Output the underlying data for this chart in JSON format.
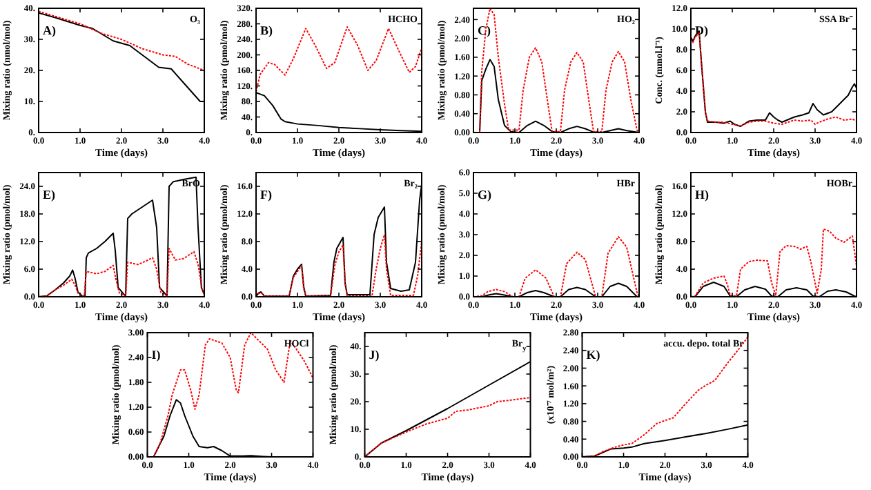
{
  "chart_data": [
    {
      "type": "line",
      "title": "A)",
      "subtitle": "O₃",
      "xlabel": "Time (days)",
      "ylabel": "Mixing ratio (nmol/mol)",
      "grid": false,
      "xlim": [
        0,
        4
      ],
      "xticks": [
        {
          "value": 0,
          "label": "0.0"
        },
        {
          "value": 1,
          "label": "1.0"
        },
        {
          "value": 2,
          "label": "2.0"
        },
        {
          "value": 3,
          "label": "3.0"
        },
        {
          "value": 4,
          "label": "4.0"
        }
      ],
      "ylim": [
        0,
        40
      ],
      "yticks": [
        {
          "value": 0,
          "label": "0."
        },
        {
          "value": 10,
          "label": "10."
        },
        {
          "value": 20,
          "label": "20."
        },
        {
          "value": 30,
          "label": "30."
        },
        {
          "value": 40,
          "label": "40."
        }
      ],
      "series": [
        {
          "color": "#000000",
          "line_style": "solid",
          "x": [
            0,
            0.4,
            1.0,
            1.3,
            1.8,
            2.2,
            2.5,
            2.9,
            3.2,
            3.5,
            3.9,
            4.0
          ],
          "values": [
            38.5,
            37,
            34.5,
            33.5,
            29.5,
            28,
            25,
            21,
            20.5,
            16,
            10,
            10
          ]
        },
        {
          "color": "#ff0000",
          "line_style": "dotted",
          "x": [
            0,
            0.5,
            1.0,
            1.5,
            2.0,
            2.5,
            3.0,
            3.3,
            3.6,
            4.0
          ],
          "values": [
            39,
            37,
            35,
            32,
            30,
            27,
            25,
            24.5,
            22,
            20
          ]
        }
      ]
    },
    {
      "type": "line",
      "title": "B)",
      "subtitle": "HCHO",
      "xlabel": "Time (days)",
      "ylabel": "Mixing ratio (pmol/mol)",
      "grid": false,
      "xlim": [
        0,
        4
      ],
      "xticks": [
        {
          "value": 0,
          "label": "0.0"
        },
        {
          "value": 1,
          "label": "1.0"
        },
        {
          "value": 2,
          "label": "2.0"
        },
        {
          "value": 3,
          "label": "3.0"
        },
        {
          "value": 4,
          "label": "4.0"
        }
      ],
      "ylim": [
        0,
        320
      ],
      "yticks": [
        {
          "value": 0,
          "label": "0."
        },
        {
          "value": 40,
          "label": "40."
        },
        {
          "value": 80,
          "label": "80."
        },
        {
          "value": 120,
          "label": "120."
        },
        {
          "value": 160,
          "label": "160."
        },
        {
          "value": 200,
          "label": "200."
        },
        {
          "value": 240,
          "label": "240."
        },
        {
          "value": 280,
          "label": "280."
        },
        {
          "value": 320,
          "label": "320."
        }
      ],
      "series": [
        {
          "color": "#000000",
          "line_style": "solid",
          "x": [
            0,
            0.2,
            0.4,
            0.6,
            0.7,
            1,
            1.5,
            2,
            2.5,
            3,
            3.5,
            4
          ],
          "values": [
            103,
            95,
            70,
            35,
            28,
            22,
            18,
            13,
            10,
            7,
            5,
            3
          ]
        },
        {
          "color": "#ff0000",
          "line_style": "dotted",
          "x": [
            0,
            0.1,
            0.3,
            0.45,
            0.7,
            0.9,
            1.2,
            1.45,
            1.7,
            1.9,
            2.2,
            2.45,
            2.7,
            2.9,
            3.2,
            3.45,
            3.7,
            3.85,
            4.0
          ],
          "values": [
            105,
            150,
            180,
            175,
            148,
            190,
            268,
            220,
            165,
            180,
            272,
            225,
            160,
            185,
            268,
            210,
            155,
            170,
            218
          ]
        }
      ]
    },
    {
      "type": "line",
      "title": "C)",
      "subtitle": "HO₂",
      "xlabel": "Time (days)",
      "ylabel": "Mixing ratio (pmol/mol)",
      "grid": false,
      "xlim": [
        0,
        4
      ],
      "xticks": [
        {
          "value": 0,
          "label": "0.0"
        },
        {
          "value": 1,
          "label": "1.0"
        },
        {
          "value": 2,
          "label": "2.0"
        },
        {
          "value": 3,
          "label": "3.0"
        },
        {
          "value": 4,
          "label": "4.0"
        }
      ],
      "ylim": [
        0,
        2.64
      ],
      "yticks": [
        {
          "value": 0,
          "label": "0.00"
        },
        {
          "value": 0.4,
          "label": "0.40"
        },
        {
          "value": 0.8,
          "label": "0.80"
        },
        {
          "value": 1.2,
          "label": "1.20"
        },
        {
          "value": 1.6,
          "label": "1.60"
        },
        {
          "value": 2.0,
          "label": "2.00"
        },
        {
          "value": 2.4,
          "label": "2.40"
        }
      ],
      "series": [
        {
          "color": "#000000",
          "line_style": "solid",
          "x": [
            0,
            0.15,
            0.2,
            0.3,
            0.4,
            0.5,
            0.6,
            0.75,
            0.9,
            1.1,
            1.3,
            1.5,
            1.7,
            1.9,
            2.1,
            2.3,
            2.5,
            2.7,
            2.9,
            3.1,
            3.3,
            3.5,
            3.7,
            4.0
          ],
          "values": [
            0,
            0,
            1.1,
            1.35,
            1.55,
            1.4,
            0.7,
            0.15,
            0.02,
            0,
            0.15,
            0.24,
            0.15,
            0.02,
            0,
            0.08,
            0.13,
            0.08,
            0.01,
            0,
            0.04,
            0.08,
            0.04,
            0
          ]
        },
        {
          "color": "#ff0000",
          "line_style": "dotted",
          "x": [
            0,
            0.15,
            0.2,
            0.3,
            0.4,
            0.5,
            0.6,
            0.75,
            0.85,
            1.1,
            1.2,
            1.35,
            1.5,
            1.65,
            1.8,
            1.9,
            2.1,
            2.2,
            2.35,
            2.5,
            2.65,
            2.8,
            2.9,
            3.1,
            3.2,
            3.35,
            3.5,
            3.65,
            3.8,
            3.95,
            4.0
          ],
          "values": [
            0,
            0,
            1.3,
            2.2,
            2.64,
            2.5,
            1.6,
            0.6,
            0.05,
            0.05,
            0.9,
            1.6,
            1.8,
            1.5,
            0.6,
            0.02,
            0.02,
            0.9,
            1.5,
            1.7,
            1.5,
            0.6,
            0.02,
            0.02,
            0.9,
            1.5,
            1.72,
            1.5,
            0.7,
            0.05,
            0
          ]
        }
      ]
    },
    {
      "type": "line",
      "title": "D)",
      "subtitle": "SSA Br⁻",
      "xlabel": "Time (days)",
      "ylabel": "Conc. (mmol.l⁻¹)",
      "grid": false,
      "xlim": [
        0,
        4
      ],
      "xticks": [
        {
          "value": 0,
          "label": "0.0"
        },
        {
          "value": 1,
          "label": "1.0"
        },
        {
          "value": 2,
          "label": "2.0"
        },
        {
          "value": 3,
          "label": "3.0"
        },
        {
          "value": 4,
          "label": "4.0"
        }
      ],
      "ylim": [
        0,
        12
      ],
      "yticks": [
        {
          "value": 0,
          "label": "0.0"
        },
        {
          "value": 2,
          "label": "2.0"
        },
        {
          "value": 4,
          "label": "4.0"
        },
        {
          "value": 6,
          "label": "6.0"
        },
        {
          "value": 8,
          "label": "8.0"
        },
        {
          "value": 10,
          "label": "10.0"
        },
        {
          "value": 12,
          "label": "12.0"
        }
      ],
      "series": [
        {
          "color": "#000000",
          "line_style": "solid",
          "x": [
            0,
            0.05,
            0.1,
            0.2,
            0.25,
            0.35,
            0.4,
            0.6,
            0.8,
            0.95,
            1.05,
            1.2,
            1.4,
            1.6,
            1.8,
            1.9,
            2.0,
            2.1,
            2.2,
            2.5,
            2.7,
            2.85,
            2.95,
            3.05,
            3.2,
            3.4,
            3.6,
            3.8,
            3.9,
            3.95,
            4.0
          ],
          "values": [
            9.2,
            8.8,
            9.3,
            9.8,
            7,
            2,
            1,
            1,
            0.9,
            1.1,
            0.8,
            0.6,
            1.1,
            1.2,
            1.2,
            1.9,
            1.5,
            1.2,
            1.0,
            1.5,
            1.7,
            1.9,
            2.8,
            2.2,
            1.7,
            2.0,
            2.8,
            3.6,
            4.4,
            4.7,
            4.3
          ]
        },
        {
          "color": "#ff0000",
          "line_style": "dotted",
          "x": [
            0,
            0.05,
            0.1,
            0.2,
            0.25,
            0.35,
            0.4,
            0.6,
            0.8,
            1.0,
            1.2,
            1.4,
            1.6,
            1.8,
            2.0,
            2.2,
            2.5,
            2.7,
            2.9,
            3.0,
            3.1,
            3.3,
            3.5,
            3.7,
            3.9,
            4.0
          ],
          "values": [
            9.0,
            8.7,
            9.2,
            9.6,
            7,
            2,
            1.1,
            1.0,
            1.0,
            0.8,
            0.6,
            1.0,
            1.1,
            1.1,
            0.9,
            0.8,
            1.2,
            1.1,
            1.2,
            0.8,
            1.0,
            1.3,
            1.5,
            1.2,
            1.3,
            1.1
          ]
        }
      ]
    },
    {
      "type": "line",
      "title": "E)",
      "subtitle": "BrO",
      "xlabel": "Time (days)",
      "ylabel": "Mixing ratio (pmol/mol)",
      "grid": false,
      "xlim": [
        0,
        4
      ],
      "xticks": [
        {
          "value": 0,
          "label": "0.0"
        },
        {
          "value": 1,
          "label": "1.0"
        },
        {
          "value": 2,
          "label": "2.0"
        },
        {
          "value": 3,
          "label": "3.0"
        },
        {
          "value": 4,
          "label": "4.0"
        }
      ],
      "ylim": [
        0,
        27
      ],
      "yticks": [
        {
          "value": 0,
          "label": "0.0"
        },
        {
          "value": 6,
          "label": "6.0"
        },
        {
          "value": 12,
          "label": "12.0"
        },
        {
          "value": 18,
          "label": "18.0"
        },
        {
          "value": 24,
          "label": "24.0"
        }
      ],
      "series": [
        {
          "color": "#000000",
          "line_style": "solid",
          "x": [
            0,
            0.2,
            0.4,
            0.6,
            0.75,
            0.82,
            0.88,
            0.95,
            1.05,
            1.12,
            1.15,
            1.2,
            1.4,
            1.6,
            1.8,
            1.85,
            1.92,
            2.1,
            2.15,
            2.25,
            2.5,
            2.75,
            2.85,
            2.92,
            3.1,
            3.15,
            3.25,
            3.5,
            3.8,
            3.85,
            3.93,
            4.0
          ],
          "values": [
            0,
            0.2,
            1.5,
            3,
            4.5,
            5.8,
            4,
            1,
            0.2,
            0.1,
            8.5,
            9.5,
            10.5,
            12,
            13.8,
            10,
            2,
            0.1,
            17,
            18,
            19.5,
            21,
            15,
            2,
            0.2,
            24,
            25,
            25.5,
            26,
            15,
            2,
            0.5
          ]
        },
        {
          "color": "#ff0000",
          "line_style": "dotted",
          "x": [
            0,
            0.2,
            0.4,
            0.6,
            0.8,
            0.88,
            0.95,
            1.1,
            1.15,
            1.4,
            1.6,
            1.8,
            1.86,
            1.95,
            2.1,
            2.15,
            2.4,
            2.6,
            2.75,
            2.85,
            2.95,
            3.1,
            3.15,
            3.3,
            3.5,
            3.75,
            3.85,
            3.95,
            4.0
          ],
          "values": [
            0,
            0.2,
            1.5,
            2.5,
            3.8,
            2.5,
            0.8,
            0.1,
            5.5,
            5.0,
            5.5,
            6.8,
            4,
            0.8,
            0.1,
            7.5,
            7.0,
            7.8,
            8.5,
            6,
            1,
            0.2,
            10.5,
            8,
            8.3,
            9.8,
            7,
            1.5,
            0.5
          ]
        }
      ]
    },
    {
      "type": "line",
      "title": "F)",
      "subtitle": "Br₂",
      "xlabel": "Time (days)",
      "ylabel": "Mixing ratio (pmol/mol)",
      "grid": false,
      "xlim": [
        0,
        4
      ],
      "xticks": [
        {
          "value": 0,
          "label": "0.0"
        },
        {
          "value": 1,
          "label": "1.0"
        },
        {
          "value": 2,
          "label": "2.0"
        },
        {
          "value": 3,
          "label": "3.0"
        },
        {
          "value": 4,
          "label": "4.0"
        }
      ],
      "ylim": [
        0,
        18
      ],
      "yticks": [
        {
          "value": 0,
          "label": "0.0"
        },
        {
          "value": 4,
          "label": "4.0"
        },
        {
          "value": 8,
          "label": "8.0"
        },
        {
          "value": 12,
          "label": "12.0"
        },
        {
          "value": 16,
          "label": "16.0"
        }
      ],
      "series": [
        {
          "color": "#000000",
          "line_style": "solid",
          "x": [
            0,
            0.05,
            0.12,
            0.2,
            0.8,
            0.9,
            1.0,
            1.1,
            1.15,
            1.2,
            1.8,
            1.88,
            1.95,
            2.1,
            2.15,
            2.2,
            2.75,
            2.85,
            2.95,
            3.1,
            3.15,
            3.25,
            3.5,
            3.7,
            3.85,
            3.95,
            4.0
          ],
          "values": [
            0,
            0.5,
            0.7,
            0.1,
            0.1,
            3,
            4,
            4.7,
            1.5,
            0.1,
            0.2,
            5,
            7,
            8.6,
            2,
            0.3,
            0.3,
            9,
            11.5,
            13,
            5,
            1.2,
            0.8,
            1,
            5,
            14,
            16.3
          ]
        },
        {
          "color": "#ff0000",
          "line_style": "dotted",
          "x": [
            0,
            0.05,
            0.12,
            0.2,
            0.8,
            0.9,
            1.1,
            1.15,
            1.2,
            1.8,
            1.9,
            2.0,
            2.1,
            2.15,
            2.2,
            2.8,
            2.9,
            3.0,
            3.1,
            3.15,
            3.25,
            3.8,
            3.9,
            4.0
          ],
          "values": [
            0,
            0.4,
            0.6,
            0.1,
            0.1,
            2.8,
            4.5,
            1.2,
            0.1,
            0.1,
            4.5,
            6.5,
            7.5,
            2,
            0.1,
            0.1,
            4,
            7,
            9,
            4,
            0.2,
            0.2,
            3,
            8
          ]
        }
      ]
    },
    {
      "type": "line",
      "title": "G)",
      "subtitle": "HBr",
      "xlabel": "Time (days)",
      "ylabel": "Mixing ratio (pmol/mol)",
      "grid": false,
      "xlim": [
        0,
        4
      ],
      "xticks": [
        {
          "value": 0,
          "label": "0.0"
        },
        {
          "value": 1,
          "label": "1.0"
        },
        {
          "value": 2,
          "label": "2.0"
        },
        {
          "value": 3,
          "label": "3.0"
        },
        {
          "value": 4,
          "label": "4.0"
        }
      ],
      "ylim": [
        0,
        6
      ],
      "yticks": [
        {
          "value": 0,
          "label": "0.0"
        },
        {
          "value": 1,
          "label": "1.0"
        },
        {
          "value": 2,
          "label": "2.0"
        },
        {
          "value": 3,
          "label": "3.0"
        },
        {
          "value": 4,
          "label": "4.0"
        },
        {
          "value": 5,
          "label": "5.0"
        },
        {
          "value": 6,
          "label": "6.0"
        }
      ],
      "series": [
        {
          "color": "#000000",
          "line_style": "solid",
          "x": [
            0,
            0.2,
            0.4,
            0.55,
            0.7,
            0.95,
            1.1,
            1.3,
            1.5,
            1.7,
            1.95,
            2.1,
            2.3,
            2.5,
            2.7,
            2.95,
            3.1,
            3.3,
            3.5,
            3.7,
            3.95,
            4.0
          ],
          "values": [
            0,
            0,
            0.1,
            0.15,
            0.1,
            0,
            0,
            0.2,
            0.3,
            0.2,
            0,
            0,
            0.35,
            0.45,
            0.35,
            0,
            0,
            0.5,
            0.65,
            0.5,
            0,
            0
          ]
        },
        {
          "color": "#ff0000",
          "line_style": "dotted",
          "x": [
            0,
            0.2,
            0.35,
            0.55,
            0.75,
            0.95,
            1.1,
            1.25,
            1.5,
            1.75,
            1.95,
            2.1,
            2.25,
            2.5,
            2.7,
            2.95,
            3.1,
            3.25,
            3.5,
            3.7,
            3.95,
            4.0
          ],
          "values": [
            0,
            0.05,
            0.25,
            0.35,
            0.25,
            0,
            0,
            0.9,
            1.3,
            0.9,
            0,
            0,
            1.6,
            2.15,
            1.8,
            0,
            0,
            2.1,
            2.9,
            2.4,
            0.2,
            0
          ]
        }
      ]
    },
    {
      "type": "line",
      "title": "H)",
      "subtitle": "HOBr",
      "xlabel": "Time (days)",
      "ylabel": "Mixing ratio (pmol/mol)",
      "grid": false,
      "xlim": [
        0,
        4
      ],
      "xticks": [
        {
          "value": 0,
          "label": "0.0"
        },
        {
          "value": 1,
          "label": "1.0"
        },
        {
          "value": 2,
          "label": "2.0"
        },
        {
          "value": 3,
          "label": "3.0"
        },
        {
          "value": 4,
          "label": "4.0"
        }
      ],
      "ylim": [
        0,
        18
      ],
      "yticks": [
        {
          "value": 0,
          "label": "0.0"
        },
        {
          "value": 4,
          "label": "4.0"
        },
        {
          "value": 8,
          "label": "8.0"
        },
        {
          "value": 12,
          "label": "12.0"
        },
        {
          "value": 16,
          "label": "16.0"
        }
      ],
      "series": [
        {
          "color": "#000000",
          "line_style": "solid",
          "x": [
            0,
            0.1,
            0.3,
            0.55,
            0.8,
            0.95,
            1.1,
            1.3,
            1.55,
            1.8,
            1.95,
            2.1,
            2.3,
            2.55,
            2.8,
            2.95,
            3.1,
            3.3,
            3.5,
            3.75,
            3.95,
            4.0
          ],
          "values": [
            0,
            0,
            1.5,
            2.1,
            1.5,
            0.1,
            0,
            1,
            1.5,
            1.1,
            0.1,
            0,
            1,
            1.3,
            1,
            0.1,
            0,
            0.8,
            1.0,
            0.7,
            0.1,
            0
          ]
        },
        {
          "color": "#ff0000",
          "line_style": "dotted",
          "x": [
            0,
            0.1,
            0.3,
            0.55,
            0.8,
            0.88,
            0.95,
            1.1,
            1.2,
            1.4,
            1.6,
            1.85,
            1.95,
            2.05,
            2.15,
            2.3,
            2.5,
            2.65,
            2.8,
            2.9,
            3.05,
            3.15,
            3.2,
            3.35,
            3.5,
            3.7,
            3.9,
            4.0
          ],
          "values": [
            0,
            0.1,
            2,
            2.7,
            3.0,
            1.8,
            0.2,
            0.1,
            4,
            5.1,
            5.3,
            5.2,
            2,
            0.2,
            6.5,
            7.4,
            7.3,
            6.9,
            7.3,
            5,
            0.5,
            4,
            9.8,
            9.5,
            8.5,
            7.9,
            8.8,
            4.5
          ]
        }
      ]
    },
    {
      "type": "line",
      "title": "I)",
      "subtitle": "HOCl",
      "xlabel": "Time (days)",
      "ylabel": "Mixing ratio (pmol/mol)",
      "grid": false,
      "xlim": [
        0,
        4
      ],
      "xticks": [
        {
          "value": 0,
          "label": "0.0"
        },
        {
          "value": 1,
          "label": "1.0"
        },
        {
          "value": 2,
          "label": "2.0"
        },
        {
          "value": 3,
          "label": "3.0"
        },
        {
          "value": 4,
          "label": "4.0"
        }
      ],
      "ylim": [
        0,
        3
      ],
      "yticks": [
        {
          "value": 0,
          "label": "0.00"
        },
        {
          "value": 0.6,
          "label": "0.60"
        },
        {
          "value": 1.2,
          "label": "1.20"
        },
        {
          "value": 1.8,
          "label": "1.80"
        },
        {
          "value": 2.4,
          "label": "2.40"
        },
        {
          "value": 3.0,
          "label": "3.00"
        }
      ],
      "series": [
        {
          "color": "#000000",
          "line_style": "solid",
          "x": [
            0,
            0.15,
            0.3,
            0.4,
            0.55,
            0.7,
            0.8,
            0.9,
            1.1,
            1.25,
            1.45,
            1.6,
            1.8,
            2.0,
            2.3,
            2.5,
            2.8,
            3.0,
            4.0
          ],
          "values": [
            0,
            0,
            0.3,
            0.5,
            1.0,
            1.38,
            1.3,
            1.0,
            0.5,
            0.25,
            0.22,
            0.25,
            0.15,
            0.02,
            0.02,
            0.03,
            0.01,
            0,
            0
          ]
        },
        {
          "color": "#ff0000",
          "line_style": "dotted",
          "x": [
            0,
            0.15,
            0.3,
            0.5,
            0.6,
            0.8,
            0.9,
            1.05,
            1.15,
            1.25,
            1.4,
            1.5,
            1.8,
            2.0,
            2.15,
            2.2,
            2.35,
            2.5,
            2.7,
            2.9,
            3.1,
            3.3,
            3.45,
            3.6,
            3.8,
            4.0
          ],
          "values": [
            0,
            0,
            0.3,
            1.0,
            1.5,
            2.1,
            2.1,
            1.6,
            1.15,
            1.5,
            2.7,
            2.85,
            2.75,
            2.4,
            1.6,
            1.55,
            2.7,
            3.0,
            2.8,
            2.6,
            2.1,
            1.8,
            2.8,
            2.6,
            2.3,
            1.9
          ]
        }
      ]
    },
    {
      "type": "line",
      "title": "J)",
      "subtitle": "Br$_{y}$",
      "xlabel": "Time (days)",
      "ylabel": "Mixing ratio (pmol/mol)",
      "grid": false,
      "xlim": [
        0,
        4
      ],
      "xticks": [
        {
          "value": 0,
          "label": "0.0"
        },
        {
          "value": 1,
          "label": "1.0"
        },
        {
          "value": 2,
          "label": "2.0"
        },
        {
          "value": 3,
          "label": "3.0"
        },
        {
          "value": 4,
          "label": "4.0"
        }
      ],
      "ylim": [
        0,
        45
      ],
      "yticks": [
        {
          "value": 0,
          "label": "0."
        },
        {
          "value": 10,
          "label": "10."
        },
        {
          "value": 20,
          "label": "20."
        },
        {
          "value": 30,
          "label": "30."
        },
        {
          "value": 40,
          "label": "40."
        }
      ],
      "series": [
        {
          "color": "#000000",
          "line_style": "solid",
          "x": [
            0,
            0.4,
            1,
            2,
            3,
            4
          ],
          "values": [
            0,
            5,
            9.5,
            17.5,
            26,
            34.5
          ]
        },
        {
          "color": "#ff0000",
          "line_style": "dotted",
          "x": [
            0,
            0.4,
            1,
            1.5,
            2,
            2.2,
            2.5,
            3,
            3.2,
            3.5,
            4
          ],
          "values": [
            0,
            5,
            9,
            12,
            14,
            16.5,
            17,
            18.5,
            20,
            20.5,
            21.5
          ]
        }
      ]
    },
    {
      "type": "line",
      "title": "K)",
      "subtitle": "accu. depo. total Br",
      "xlabel": "Time (days)",
      "ylabel": "(x10⁻⁷ mol/m²)",
      "grid": false,
      "xlim": [
        0,
        4
      ],
      "xticks": [
        {
          "value": 0,
          "label": "0.0"
        },
        {
          "value": 1,
          "label": "1.0"
        },
        {
          "value": 2,
          "label": "2.0"
        },
        {
          "value": 3,
          "label": "3.0"
        },
        {
          "value": 4,
          "label": "4.0"
        }
      ],
      "ylim": [
        0,
        2.8
      ],
      "yticks": [
        {
          "value": 0,
          "label": "0.00"
        },
        {
          "value": 0.4,
          "label": "0.40"
        },
        {
          "value": 0.8,
          "label": "0.80"
        },
        {
          "value": 1.2,
          "label": "1.20"
        },
        {
          "value": 1.6,
          "label": "1.60"
        },
        {
          "value": 2.0,
          "label": "2.00"
        },
        {
          "value": 2.4,
          "label": "2.40"
        },
        {
          "value": 2.8,
          "label": "2.80"
        }
      ],
      "series": [
        {
          "color": "#000000",
          "line_style": "solid",
          "x": [
            0,
            0.3,
            0.5,
            0.7,
            1.0,
            1.2,
            1.5,
            2.0,
            2.5,
            3.0,
            3.5,
            4.0
          ],
          "values": [
            0,
            0.02,
            0.1,
            0.18,
            0.2,
            0.22,
            0.3,
            0.37,
            0.45,
            0.53,
            0.62,
            0.72
          ]
        },
        {
          "color": "#ff0000",
          "line_style": "dotted",
          "x": [
            0,
            0.3,
            0.5,
            0.8,
            1.0,
            1.2,
            1.5,
            1.8,
            2.0,
            2.2,
            2.5,
            2.8,
            3.0,
            3.2,
            3.5,
            3.8,
            4.0
          ],
          "values": [
            0,
            0.02,
            0.12,
            0.22,
            0.27,
            0.3,
            0.5,
            0.75,
            0.82,
            0.88,
            1.2,
            1.5,
            1.62,
            1.72,
            2.1,
            2.45,
            2.7
          ]
        }
      ]
    }
  ]
}
